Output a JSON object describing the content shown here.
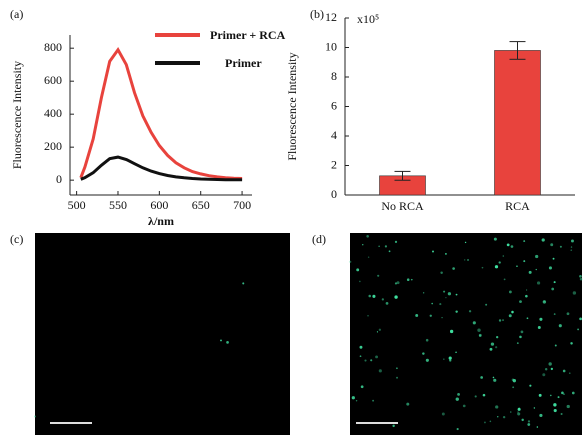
{
  "chart_data": [
    {
      "type": "line",
      "panel_label": "(a)",
      "x_label": "λ/nm",
      "y_label": "Fluorescence Intensity",
      "x": [
        505,
        510,
        520,
        530,
        540,
        550,
        560,
        570,
        580,
        590,
        600,
        610,
        620,
        630,
        640,
        650,
        660,
        670,
        680,
        690,
        700
      ],
      "series": [
        {
          "name": "Primer + RCA",
          "color": "#e8433d",
          "values": [
            15,
            80,
            250,
            500,
            720,
            790,
            700,
            530,
            390,
            290,
            210,
            150,
            105,
            75,
            52,
            38,
            27,
            20,
            15,
            12,
            10
          ]
        },
        {
          "name": "Primer",
          "color": "#111111",
          "values": [
            5,
            15,
            45,
            90,
            130,
            140,
            125,
            100,
            75,
            55,
            40,
            28,
            20,
            14,
            10,
            7,
            5,
            4,
            3,
            2,
            2
          ]
        }
      ],
      "xlim": [
        492,
        712
      ],
      "xticks": [
        500,
        550,
        600,
        650,
        700
      ],
      "ylim": [
        -90,
        880
      ],
      "yticks": [
        0,
        200,
        400,
        600,
        800
      ]
    },
    {
      "type": "bar",
      "panel_label": "(b)",
      "y_label": "Fluorescence Intensity",
      "y_multiplier": "x10⁵",
      "categories": [
        "No RCA",
        "RCA"
      ],
      "values": [
        1.3,
        9.8
      ],
      "errors": [
        0.3,
        0.6
      ],
      "color": "#e8433d",
      "ylim": [
        0,
        12
      ],
      "yticks": [
        0,
        2,
        4,
        6,
        8,
        10,
        12
      ]
    }
  ],
  "images": [
    {
      "label": "(c)"
    },
    {
      "label": "(d)"
    }
  ]
}
